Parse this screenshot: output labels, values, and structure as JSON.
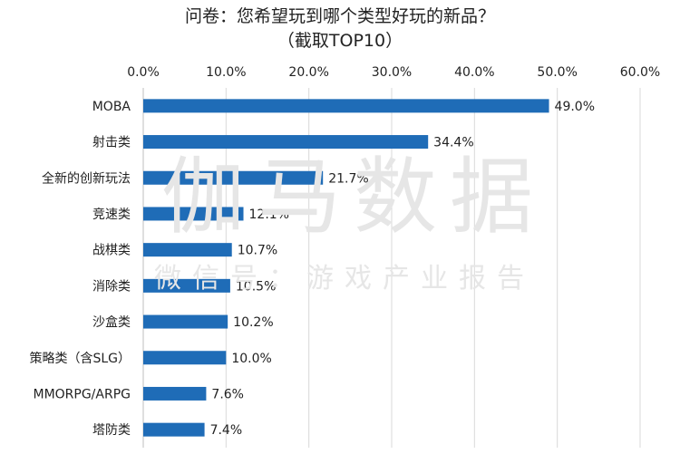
{
  "chart_data": {
    "type": "bar",
    "orientation": "horizontal",
    "title": "问卷：您希望玩到哪个类型好玩的新品？",
    "subtitle": "（截取TOP10）",
    "categories": [
      "MOBA",
      "射击类",
      "全新的创新玩法",
      "竞速类",
      "战棋类",
      "消除类",
      "沙盒类",
      "策略类（含SLG）",
      "MMORPG/ARPG",
      "塔防类"
    ],
    "values": [
      49.0,
      34.4,
      21.7,
      12.1,
      10.7,
      10.5,
      10.2,
      10.0,
      7.6,
      7.4
    ],
    "value_labels": [
      "49.0%",
      "34.4%",
      "21.7%",
      "12.1%",
      "10.7%",
      "10.5%",
      "10.2%",
      "10.0%",
      "7.6%",
      "7.4%"
    ],
    "xlim": [
      0,
      60
    ],
    "x_ticks": [
      0,
      10,
      20,
      30,
      40,
      50,
      60
    ],
    "x_tick_labels": [
      "0.0%",
      "10.0%",
      "20.0%",
      "30.0%",
      "40.0%",
      "50.0%",
      "60.0%"
    ],
    "x_axis_position": "top",
    "grid": true,
    "bar_color": "#1f6cb7",
    "gridline_color": "#d9d9d9"
  },
  "watermark": {
    "main": "伽马数据",
    "sub": "微信号：游戏产业报告"
  }
}
